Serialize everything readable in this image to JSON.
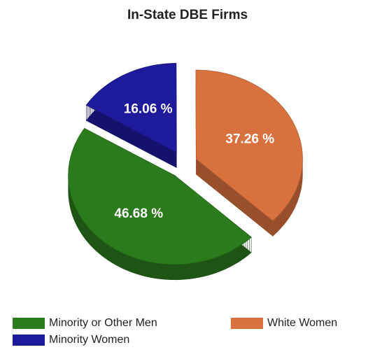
{
  "chart_data": {
    "type": "pie",
    "title": "In-State DBE Firms",
    "categories": [
      "Minority or Other Men",
      "White Women",
      "Minority Women"
    ],
    "values": [
      46.68,
      37.26,
      16.06
    ],
    "value_labels": [
      "46.68 %",
      "37.26 %",
      "16.06 %"
    ],
    "colors": [
      "#2b7a1c",
      "#d9713f",
      "#1e1a9c"
    ],
    "legend": "bottom"
  }
}
